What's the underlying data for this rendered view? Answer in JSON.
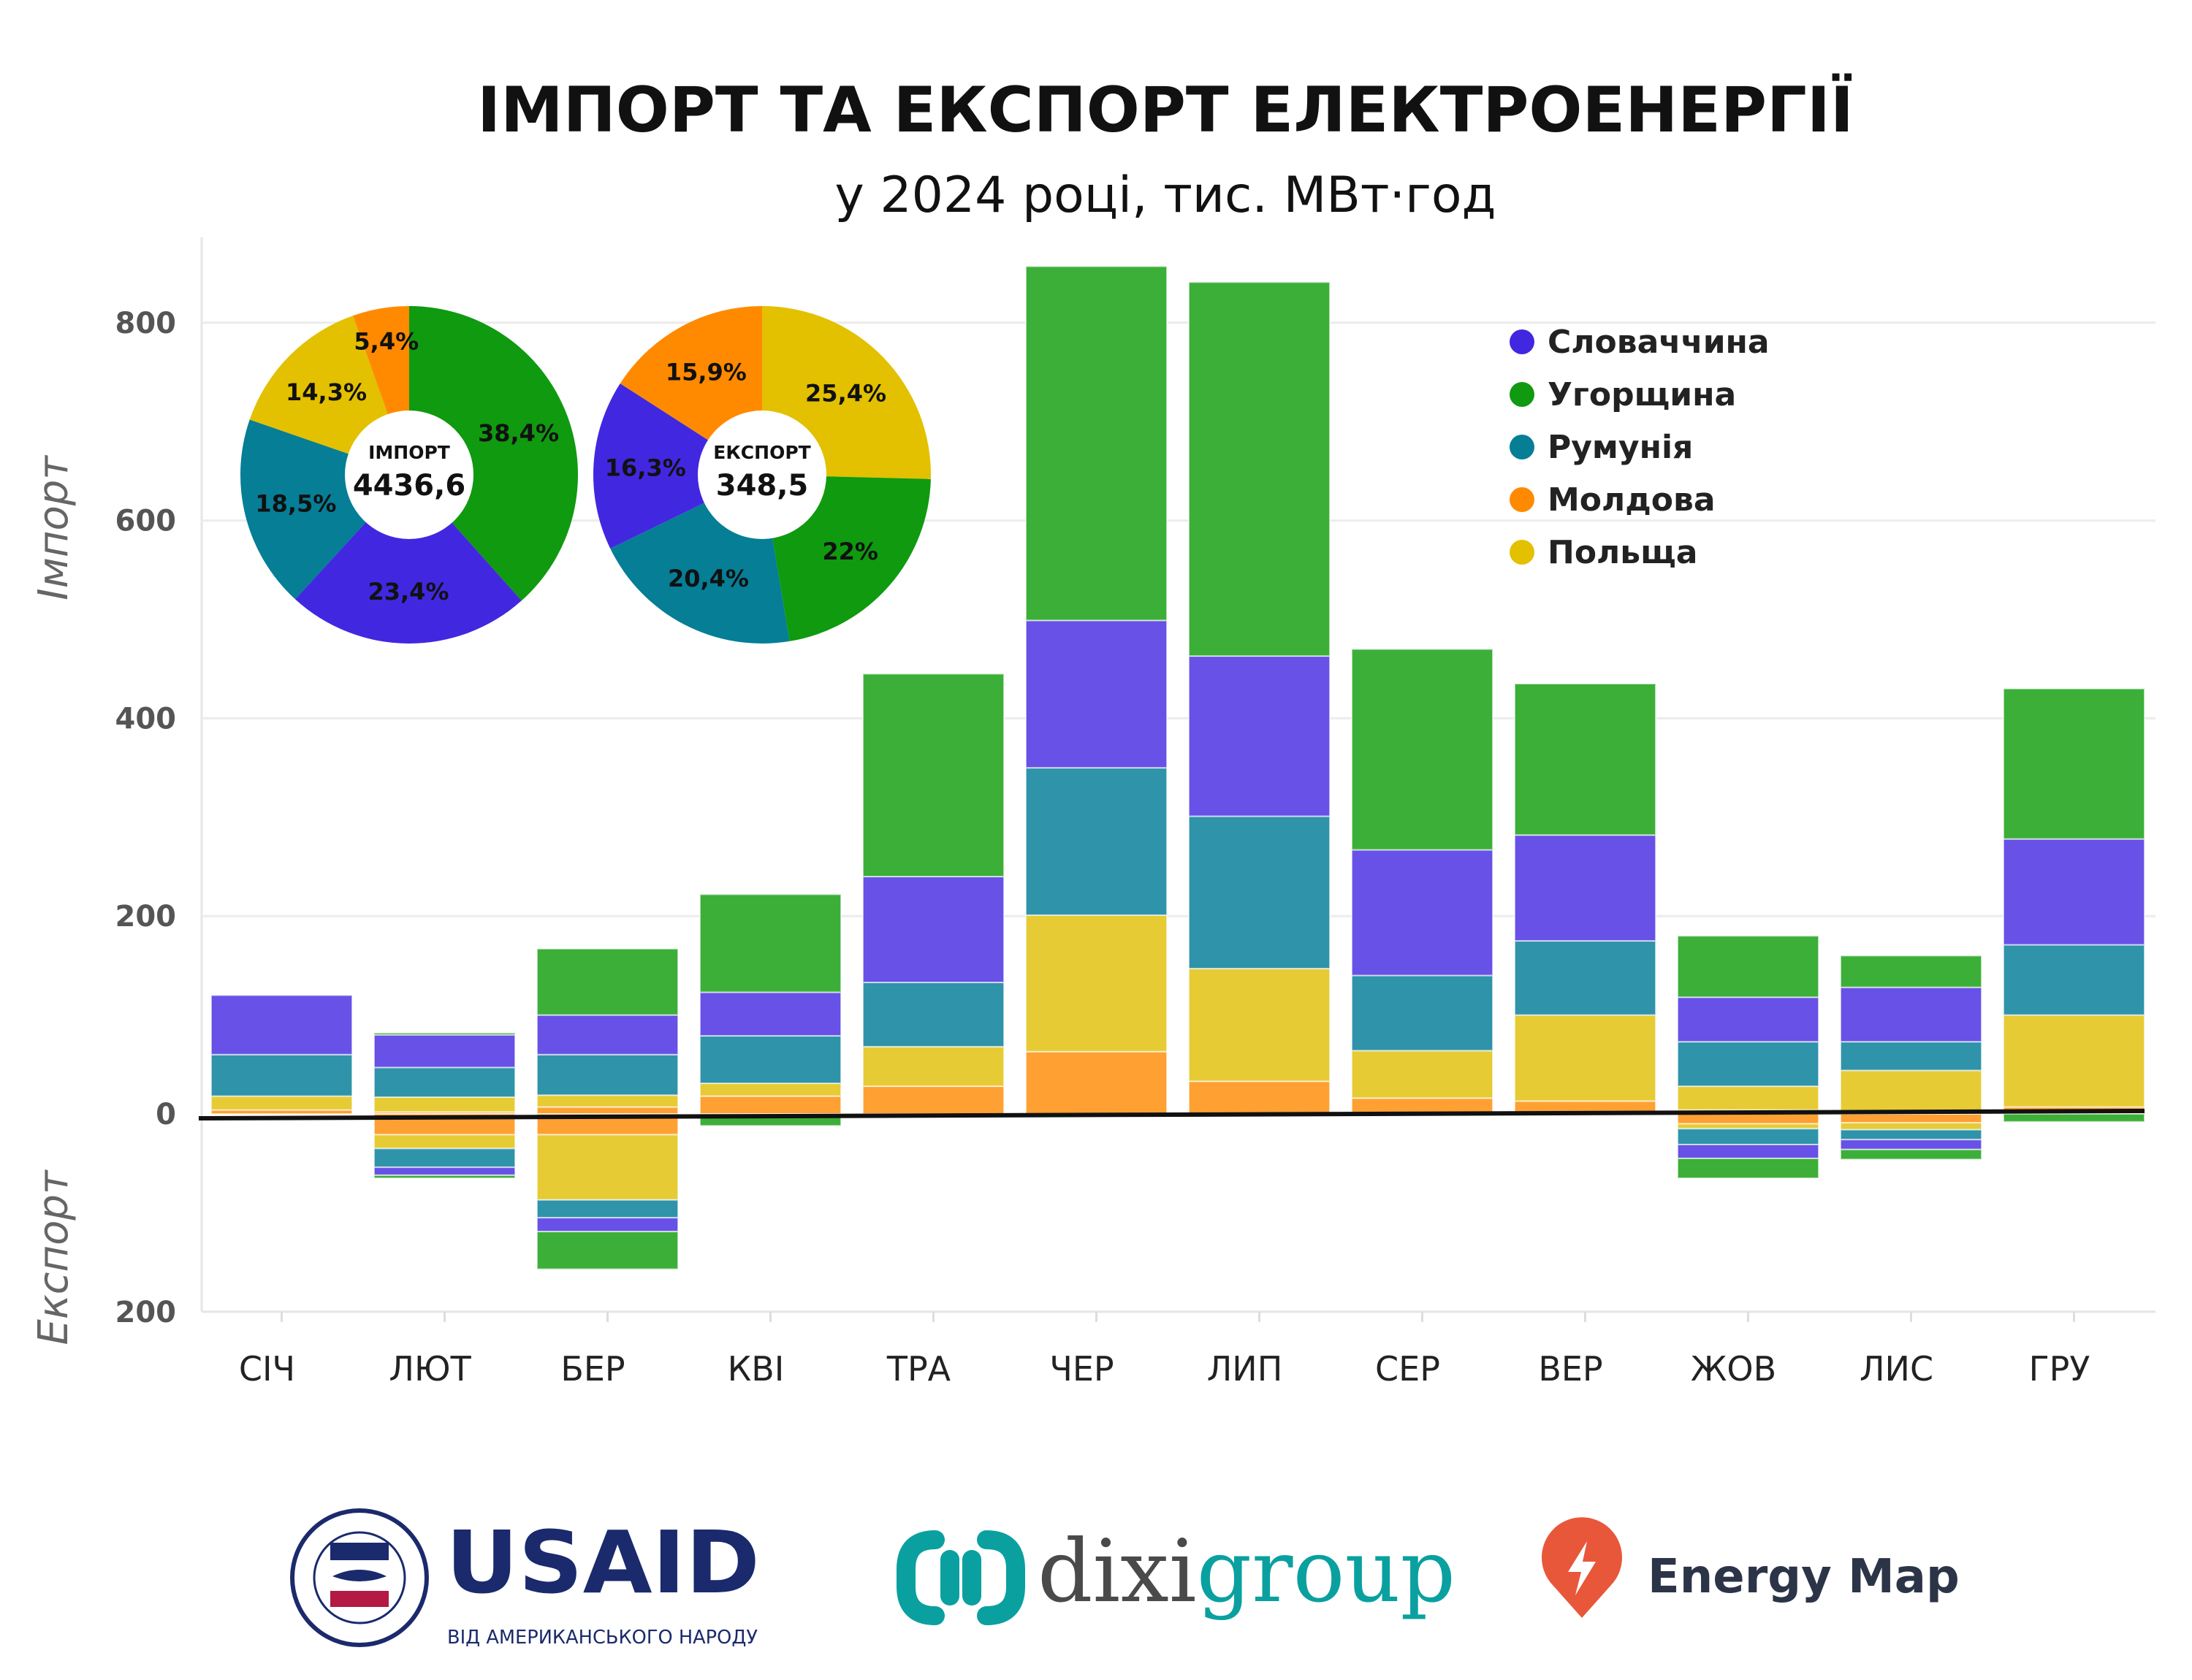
{
  "chart_data": {
    "type": "bar",
    "stacked": true,
    "title": "ІМПОРТ ТА ЕКСПОРТ ЕЛЕКТРОЕНЕРГІЇ",
    "subtitle": "у 2024 році, тис. МВт·год",
    "ylabel_import": "Імпорт",
    "ylabel_export": "Експорт",
    "ylim": [
      -200,
      860
    ],
    "yticks": [
      {
        "v": 800,
        "label": "800"
      },
      {
        "v": 600,
        "label": "600"
      },
      {
        "v": 400,
        "label": "400"
      },
      {
        "v": 200,
        "label": "200"
      },
      {
        "v": 0,
        "label": "0"
      },
      {
        "v": -200,
        "label": "200"
      }
    ],
    "grid": true,
    "legend_position": "top-right",
    "categories": [
      "СІЧ",
      "ЛЮТ",
      "БЕР",
      "КВІ",
      "ТРА",
      "ЧЕР",
      "ЛИП",
      "СЕР",
      "ВЕР",
      "ЖОВ",
      "ЛИС",
      "ГРУ"
    ],
    "series": [
      {
        "name": "Молдова",
        "key": "moldova",
        "color": "#ffa033",
        "pie_color": "#ff8a00",
        "import": [
          4,
          2,
          7,
          18,
          28,
          63,
          33,
          16,
          13,
          4,
          0,
          7
        ],
        "export": [
          0,
          21,
          21,
          0,
          0,
          0,
          0,
          0,
          0,
          10,
          9,
          0
        ]
      },
      {
        "name": "Польща",
        "key": "poland",
        "color": "#e6cb35",
        "pie_color": "#e3c000",
        "import": [
          14,
          15,
          12,
          13,
          40,
          138,
          114,
          48,
          87,
          24,
          44,
          93
        ],
        "export": [
          0,
          14,
          66,
          0,
          0,
          0,
          0,
          0,
          0,
          5,
          7,
          0
        ]
      },
      {
        "name": "Румунія",
        "key": "romania",
        "color": "#2f93aa",
        "pie_color": "#057e96",
        "import": [
          42,
          30,
          41,
          48,
          65,
          149,
          154,
          76,
          75,
          45,
          29,
          71
        ],
        "export": [
          0,
          19,
          18,
          0,
          0,
          0,
          0,
          0,
          0,
          16,
          10,
          0
        ]
      },
      {
        "name": "Словаччина",
        "key": "slovakia",
        "color": "#6751e6",
        "pie_color": "#4227e0",
        "import": [
          60,
          33,
          40,
          44,
          107,
          149,
          162,
          127,
          107,
          45,
          55,
          107
        ],
        "export": [
          0,
          8,
          14,
          0,
          0,
          0,
          0,
          0,
          0,
          14,
          10,
          0
        ]
      },
      {
        "name": "Угорщина",
        "key": "hungary",
        "color": "#3caf38",
        "pie_color": "#0f9a0f",
        "import": [
          0,
          2,
          67,
          99,
          205,
          358,
          378,
          203,
          153,
          62,
          32,
          152
        ],
        "export": [
          0,
          3,
          38,
          12,
          0,
          0,
          0,
          0,
          0,
          20,
          10,
          8
        ]
      }
    ],
    "legend_order": [
      "slovakia",
      "hungary",
      "romania",
      "moldova",
      "poland"
    ],
    "pies": [
      {
        "label": "ІМПОРТ",
        "total": "4436,6",
        "slices": [
          {
            "key": "hungary",
            "value": 38.4,
            "label": "38,4%"
          },
          {
            "key": "slovakia",
            "value": 23.4,
            "label": "23,4%"
          },
          {
            "key": "romania",
            "value": 18.5,
            "label": "18,5%"
          },
          {
            "key": "poland",
            "value": 14.3,
            "label": "14,3%"
          },
          {
            "key": "moldova",
            "value": 5.4,
            "label": "5,4%"
          }
        ]
      },
      {
        "label": "ЕКСПОРТ",
        "total": "348,5",
        "slices": [
          {
            "key": "poland",
            "value": 25.4,
            "label": "25,4%"
          },
          {
            "key": "hungary",
            "value": 22.0,
            "label": "22%"
          },
          {
            "key": "romania",
            "value": 20.4,
            "label": "20,4%"
          },
          {
            "key": "slovakia",
            "value": 16.3,
            "label": "16,3%"
          },
          {
            "key": "moldova",
            "value": 15.9,
            "label": "15,9%"
          }
        ]
      }
    ]
  },
  "logos": {
    "usaid": {
      "name": "USAID",
      "sub": "ВІД АМЕРИКАНСЬКОГО НАРОДУ",
      "seal_text": "UNITED STATES AGENCY INTERNATIONAL DEVELOPMENT"
    },
    "dixi": {
      "part1": "dixi",
      "part2": "group"
    },
    "energy_map": {
      "name": "Energy Map"
    }
  }
}
